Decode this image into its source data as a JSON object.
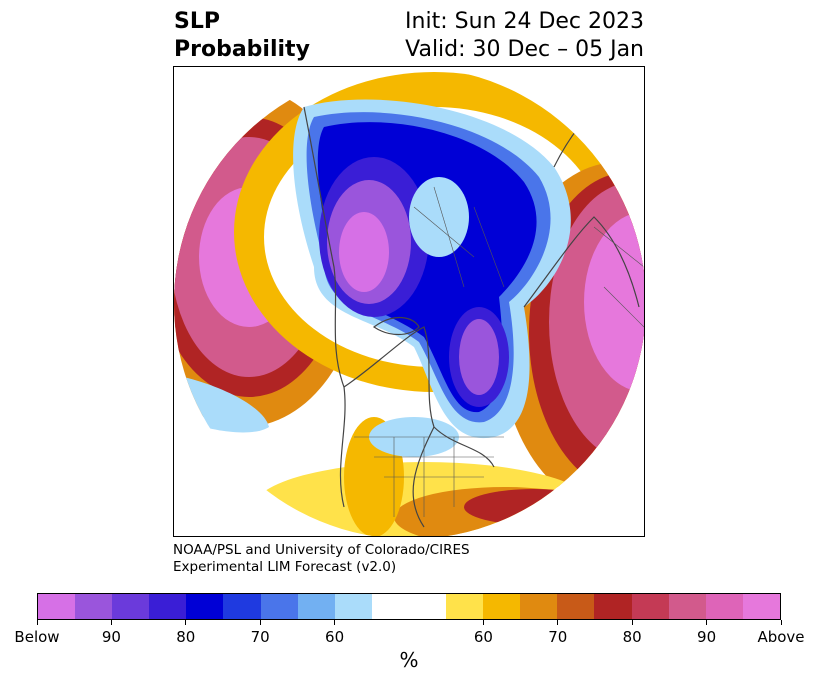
{
  "header": {
    "title_line1": "SLP",
    "title_line2": "Probability",
    "init_text": "Init: Sun 24 Dec 2023",
    "valid_text": "Valid: 30 Dec – 05 Jan"
  },
  "credit": {
    "line1": "NOAA/PSL and University of Colorado/CIRES",
    "line2": "Experimental LIM Forecast (v2.0)"
  },
  "colorbar": {
    "unit": "%",
    "colors": [
      "#d670e6",
      "#9a55dc",
      "#6b3adb",
      "#3a1ed6",
      "#0000d6",
      "#1f3ae0",
      "#4a75ea",
      "#72b0f2",
      "#aadcfa",
      "#ffffff",
      "#ffffff",
      "#ffe24a",
      "#f5b800",
      "#e08a10",
      "#c85a18",
      "#b02424",
      "#c43a55",
      "#d25a8c",
      "#de64b8",
      "#e678dc"
    ],
    "tick_labels": [
      "Below",
      "90",
      "80",
      "70",
      "60",
      "60",
      "70",
      "80",
      "90",
      "Above"
    ]
  },
  "map_colors": {
    "below_extreme": "#d670e6",
    "below_90": "#9a55dc",
    "below_80": "#3a1ed6",
    "below_70": "#0000d6",
    "below_60": "#4a75ea",
    "below_50": "#aadcfa",
    "above_50": "#ffe24a",
    "above_60": "#f5b800",
    "above_70": "#e08a10",
    "above_80": "#b02424",
    "above_90": "#d25a8c",
    "above_extreme": "#e678dc",
    "coast": "#444444"
  }
}
